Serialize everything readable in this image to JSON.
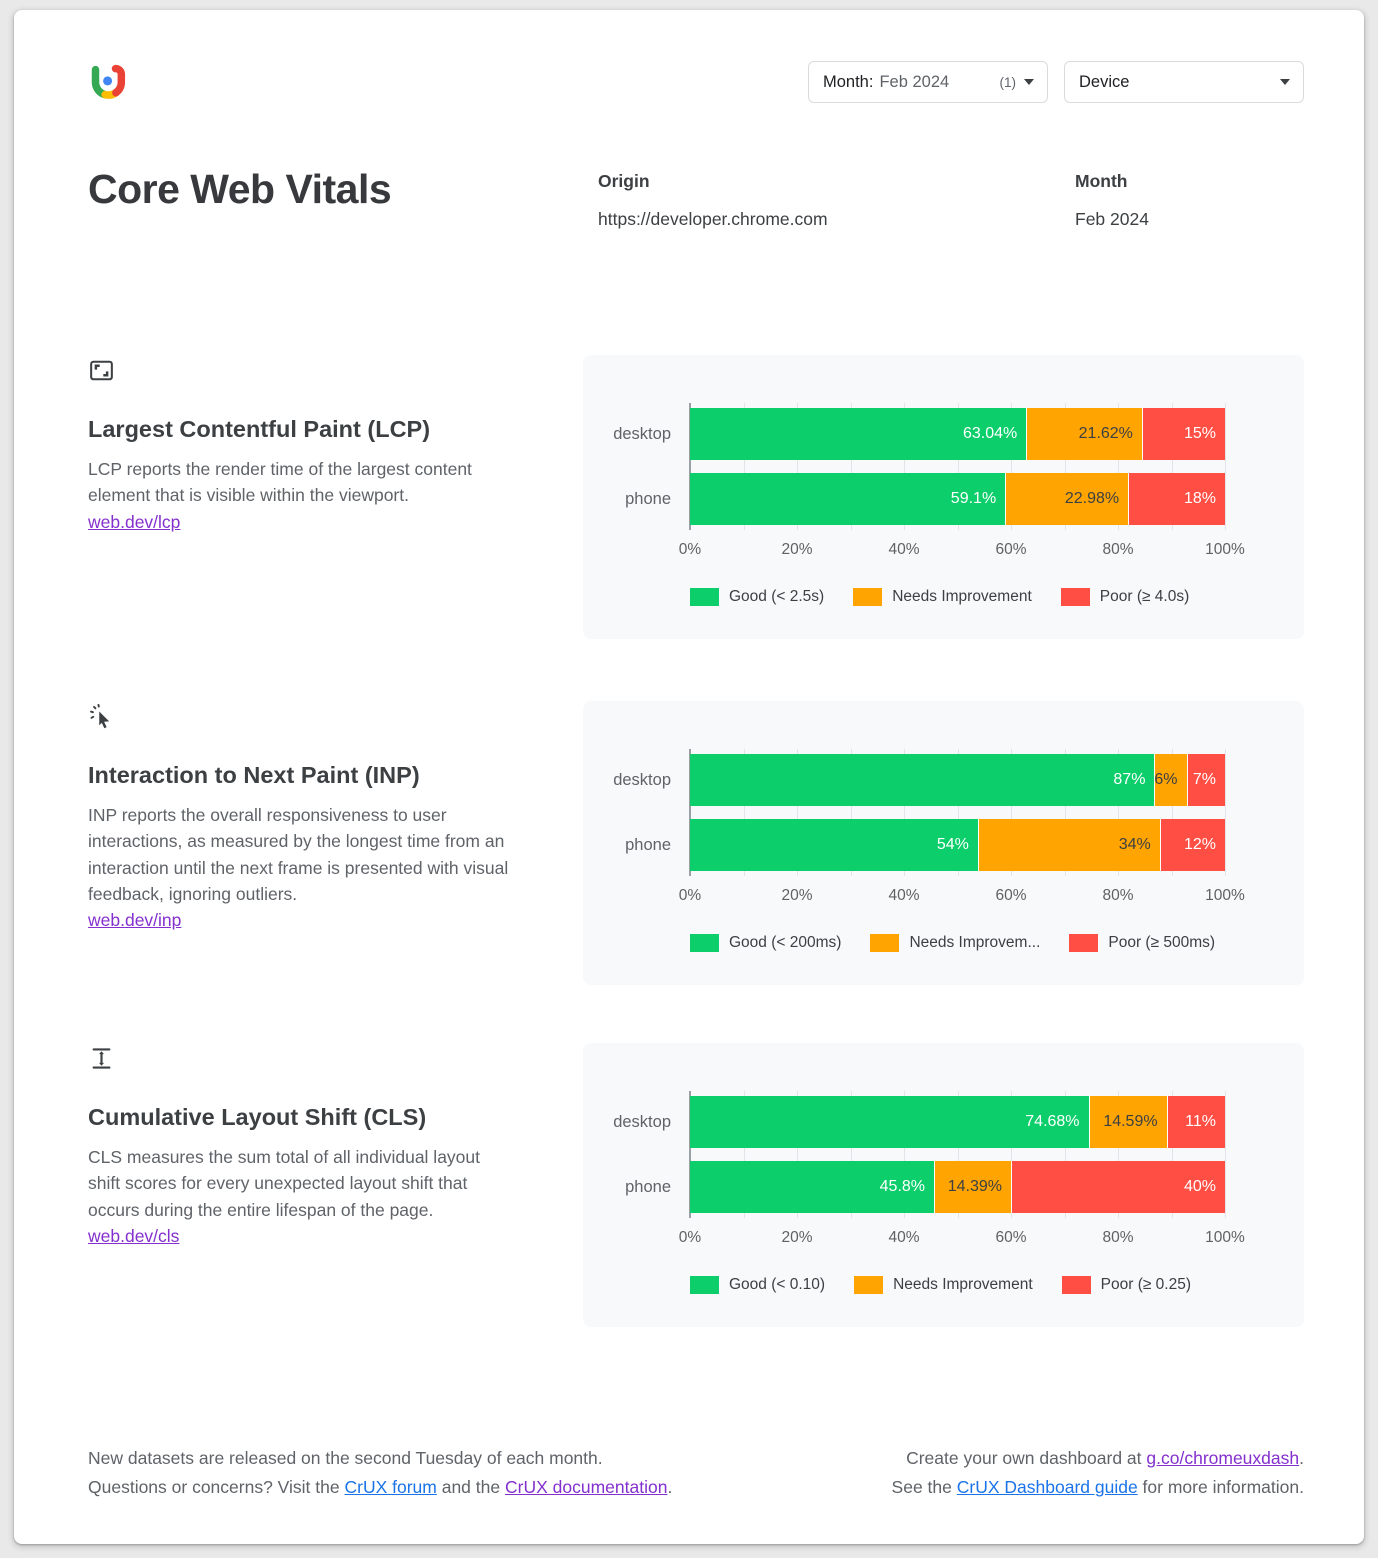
{
  "header": {
    "month_filter": {
      "label": "Month:",
      "value": "Feb 2024",
      "count": "(1)"
    },
    "device_filter": {
      "label": "Device"
    }
  },
  "title": "Core Web Vitals",
  "origin": {
    "label": "Origin",
    "value": "https://developer.chrome.com"
  },
  "month": {
    "label": "Month",
    "value": "Feb 2024"
  },
  "colors": {
    "good": "#0cce6b",
    "needs_improvement": "#ffa400",
    "poor": "#ff4e43",
    "segments": [
      {
        "bg": "#0cce6b",
        "text": "#ffffff"
      },
      {
        "bg": "#ffa400",
        "text": "#3c4043"
      },
      {
        "bg": "#ff4e43",
        "text": "#ffffff"
      }
    ],
    "link_blue": "#1a73e8",
    "link_purple": "#8430ce",
    "logo": {
      "green": "#34a853",
      "yellow": "#fbbc04",
      "red": "#ea4335",
      "blue": "#4285f4"
    }
  },
  "sections": [
    {
      "icon": "fit-screen-icon",
      "title": "Largest Contentful Paint (LCP)",
      "description": "LCP reports the render time of the largest content element that is visible within the viewport.",
      "link": "web.dev/lcp",
      "chart": {
        "rows": [
          {
            "label": "desktop",
            "segments": [
              {
                "value": 63.04,
                "label": "63.04%"
              },
              {
                "value": 21.62,
                "label": "21.62%"
              },
              {
                "value": 15.34,
                "label": "15%"
              }
            ]
          },
          {
            "label": "phone",
            "segments": [
              {
                "value": 59.1,
                "label": "59.1%"
              },
              {
                "value": 22.98,
                "label": "22.98%"
              },
              {
                "value": 17.92,
                "label": "18%"
              }
            ]
          }
        ],
        "x_ticks": [
          "0%",
          "20%",
          "40%",
          "60%",
          "80%",
          "100%"
        ],
        "legend": [
          "Good (< 2.5s)",
          "Needs Improvement",
          "Poor (≥ 4.0s)"
        ]
      }
    },
    {
      "icon": "cursor-click-icon",
      "title": "Interaction to Next Paint (INP)",
      "description": "INP reports the overall responsiveness to user interactions, as measured by the longest time from an interaction until the next frame is presented with visual feedback, ignoring outliers.",
      "link": "web.dev/inp",
      "chart": {
        "rows": [
          {
            "label": "desktop",
            "segments": [
              {
                "value": 87,
                "label": "87%"
              },
              {
                "value": 6,
                "label": "6%"
              },
              {
                "value": 7,
                "label": "7%"
              }
            ]
          },
          {
            "label": "phone",
            "segments": [
              {
                "value": 54,
                "label": "54%"
              },
              {
                "value": 34,
                "label": "34%"
              },
              {
                "value": 12,
                "label": "12%"
              }
            ]
          }
        ],
        "x_ticks": [
          "0%",
          "20%",
          "40%",
          "60%",
          "80%",
          "100%"
        ],
        "legend": [
          "Good (< 200ms)",
          "Needs Improvem...",
          "Poor (≥ 500ms)"
        ]
      }
    },
    {
      "icon": "layout-shift-icon",
      "title": "Cumulative Layout Shift (CLS)",
      "description": "CLS measures the sum total of all individual layout shift scores for every unexpected layout shift that occurs during the entire lifespan of the page.",
      "link": "web.dev/cls",
      "chart": {
        "rows": [
          {
            "label": "desktop",
            "segments": [
              {
                "value": 74.68,
                "label": "74.68%"
              },
              {
                "value": 14.59,
                "label": "14.59%"
              },
              {
                "value": 10.73,
                "label": "11%"
              }
            ]
          },
          {
            "label": "phone",
            "segments": [
              {
                "value": 45.8,
                "label": "45.8%"
              },
              {
                "value": 14.39,
                "label": "14.39%"
              },
              {
                "value": 39.81,
                "label": "40%"
              }
            ]
          }
        ],
        "x_ticks": [
          "0%",
          "20%",
          "40%",
          "60%",
          "80%",
          "100%"
        ],
        "legend": [
          "Good (< 0.10)",
          "Needs Improvement",
          "Poor (≥ 0.25)"
        ]
      }
    }
  ],
  "footer": {
    "left_line1": "New datasets are released on the second Tuesday of each month.",
    "left_line2_prefix": "Questions or concerns? Visit the ",
    "left_link1": "CrUX forum",
    "left_line2_mid": " and the ",
    "left_link2": "CrUX documentation",
    "left_line2_suffix": ".",
    "right_line1_prefix": "Create your own dashboard at ",
    "right_link1": "g.co/chromeuxdash",
    "right_line1_suffix": ".",
    "right_line2_prefix": "See the ",
    "right_link2": "CrUX Dashboard guide",
    "right_line2_suffix": " for more information."
  },
  "chart_data": [
    {
      "type": "bar",
      "orientation": "horizontal",
      "title": "Largest Contentful Paint (LCP)",
      "categories": [
        "desktop",
        "phone"
      ],
      "series": [
        {
          "name": "Good (< 2.5s)",
          "values": [
            63.04,
            59.1
          ]
        },
        {
          "name": "Needs Improvement",
          "values": [
            21.62,
            22.98
          ]
        },
        {
          "name": "Poor (≥ 4.0s)",
          "values": [
            15,
            18
          ]
        }
      ],
      "xlim": [
        0,
        100
      ],
      "x_ticks": [
        "0%",
        "20%",
        "40%",
        "60%",
        "80%",
        "100%"
      ],
      "grid": true,
      "legend_position": "bottom"
    },
    {
      "type": "bar",
      "orientation": "horizontal",
      "title": "Interaction to Next Paint (INP)",
      "categories": [
        "desktop",
        "phone"
      ],
      "series": [
        {
          "name": "Good (< 200ms)",
          "values": [
            87,
            54
          ]
        },
        {
          "name": "Needs Improvement",
          "values": [
            6,
            34
          ]
        },
        {
          "name": "Poor (≥ 500ms)",
          "values": [
            7,
            12
          ]
        }
      ],
      "xlim": [
        0,
        100
      ],
      "x_ticks": [
        "0%",
        "20%",
        "40%",
        "60%",
        "80%",
        "100%"
      ],
      "grid": true,
      "legend_position": "bottom"
    },
    {
      "type": "bar",
      "orientation": "horizontal",
      "title": "Cumulative Layout Shift (CLS)",
      "categories": [
        "desktop",
        "phone"
      ],
      "series": [
        {
          "name": "Good (< 0.10)",
          "values": [
            74.68,
            45.8
          ]
        },
        {
          "name": "Needs Improvement",
          "values": [
            14.59,
            14.39
          ]
        },
        {
          "name": "Poor (≥ 0.25)",
          "values": [
            11,
            40
          ]
        }
      ],
      "xlim": [
        0,
        100
      ],
      "x_ticks": [
        "0%",
        "20%",
        "40%",
        "60%",
        "80%",
        "100%"
      ],
      "grid": true,
      "legend_position": "bottom"
    }
  ]
}
